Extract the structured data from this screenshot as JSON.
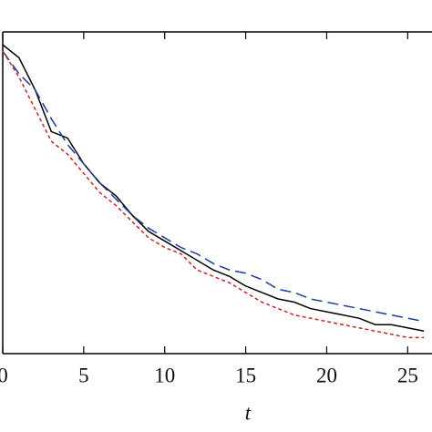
{
  "chart_data": {
    "type": "line",
    "xlabel": "t",
    "x": [
      0,
      1,
      2,
      3,
      4,
      5,
      6,
      7,
      8,
      9,
      10,
      11,
      12,
      13,
      14,
      15,
      16,
      17,
      18,
      19,
      20,
      21,
      22,
      23,
      24,
      25,
      26
    ],
    "series": [
      {
        "color": "#000000",
        "style": "solid",
        "values": [
          0.96,
          0.92,
          0.82,
          0.69,
          0.67,
          0.59,
          0.53,
          0.49,
          0.43,
          0.38,
          0.35,
          0.32,
          0.29,
          0.26,
          0.24,
          0.21,
          0.19,
          0.17,
          0.16,
          0.14,
          0.13,
          0.12,
          0.11,
          0.09,
          0.09,
          0.08,
          0.07
        ]
      },
      {
        "color": "#1f3c9e",
        "style": "dashed",
        "values": [
          0.94,
          0.87,
          0.82,
          0.73,
          0.65,
          0.59,
          0.53,
          0.48,
          0.43,
          0.39,
          0.36,
          0.33,
          0.31,
          0.28,
          0.26,
          0.25,
          0.23,
          0.2,
          0.19,
          0.17,
          0.16,
          0.15,
          0.14,
          0.13,
          0.12,
          0.11,
          0.1
        ]
      },
      {
        "color": "#c62828",
        "style": "dotted",
        "values": [
          0.94,
          0.86,
          0.76,
          0.66,
          0.62,
          0.56,
          0.5,
          0.46,
          0.41,
          0.36,
          0.33,
          0.31,
          0.26,
          0.24,
          0.22,
          0.19,
          0.16,
          0.14,
          0.12,
          0.11,
          0.1,
          0.09,
          0.08,
          0.07,
          0.06,
          0.05,
          0.05
        ]
      }
    ],
    "xlim": [
      0,
      26.5
    ],
    "xticks": [
      0,
      5,
      10,
      15,
      20,
      25
    ],
    "ylim": [
      0,
      1
    ]
  }
}
